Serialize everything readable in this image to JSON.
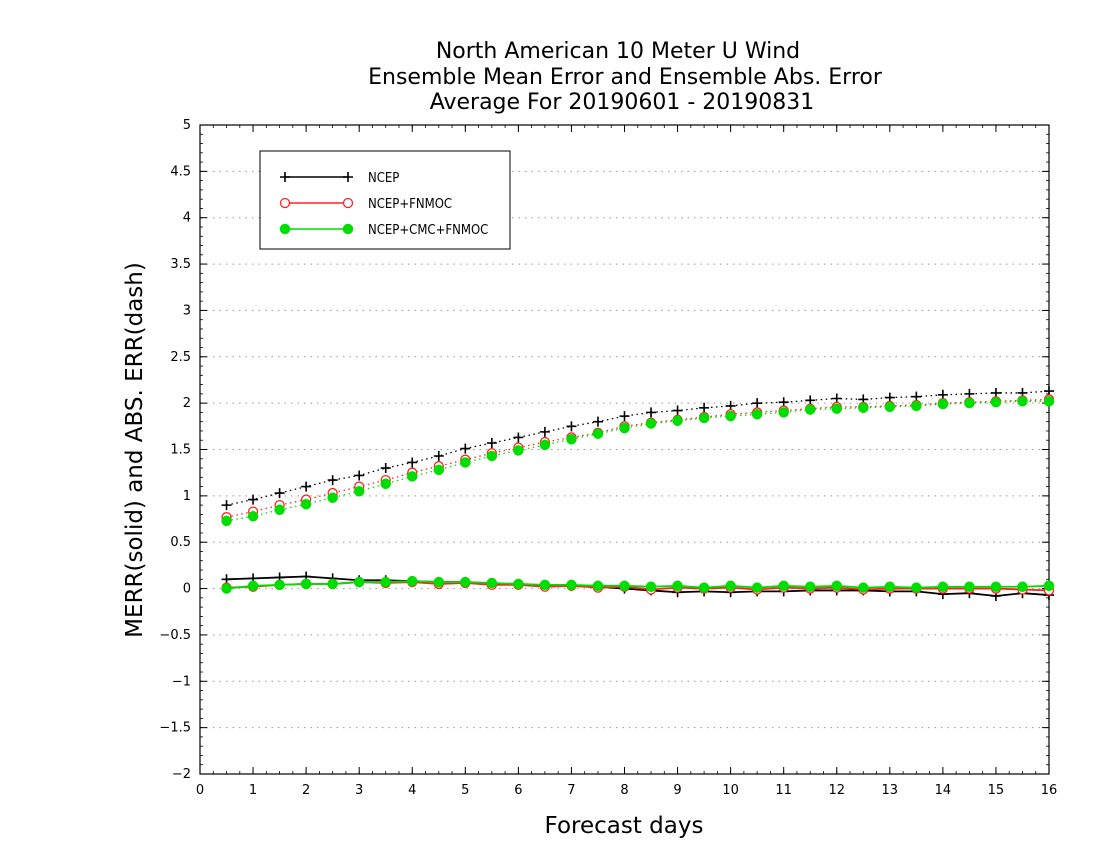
{
  "chart_data": {
    "type": "line",
    "title": [
      "North American 10 Meter U Wind",
      "Ensemble Mean Error and Ensemble Abs. Error",
      "Average For 20190601 - 20190831"
    ],
    "xlabel": "Forecast days",
    "ylabel": "MERR(solid) and ABS. ERR(dash)",
    "xlim": [
      0,
      16
    ],
    "ylim": [
      -2,
      5
    ],
    "x_ticks": [
      "0",
      "1",
      "2",
      "3",
      "4",
      "5",
      "6",
      "7",
      "8",
      "9",
      "10",
      "11",
      "12",
      "13",
      "14",
      "15",
      "16"
    ],
    "y_ticks": [
      "−2",
      "−1.5",
      "−1",
      "−0.5",
      "0",
      "0.5",
      "1",
      "1.5",
      "2",
      "2.5",
      "3",
      "3.5",
      "4",
      "4.5",
      "5"
    ],
    "grid": "horizontal-dotted",
    "legend_position": "top-left",
    "x": [
      0.5,
      1,
      1.5,
      2,
      2.5,
      3,
      3.5,
      4,
      4.5,
      5,
      5.5,
      6,
      6.5,
      7,
      7.5,
      8,
      8.5,
      9,
      9.5,
      10,
      10.5,
      11,
      11.5,
      12,
      12.5,
      13,
      13.5,
      14,
      14.5,
      15,
      15.5,
      16
    ],
    "series": [
      {
        "name": "NCEP",
        "color": "#000000",
        "marker": "plus",
        "merr": [
          0.1,
          0.11,
          0.12,
          0.13,
          0.11,
          0.09,
          0.09,
          0.08,
          0.07,
          0.07,
          0.05,
          0.05,
          0.03,
          0.03,
          0.02,
          0.0,
          -0.02,
          -0.04,
          -0.03,
          -0.04,
          -0.03,
          -0.03,
          -0.02,
          -0.02,
          -0.02,
          -0.03,
          -0.03,
          -0.06,
          -0.05,
          -0.08,
          -0.05,
          -0.07
        ],
        "abserr": [
          0.9,
          0.96,
          1.03,
          1.1,
          1.17,
          1.22,
          1.3,
          1.36,
          1.43,
          1.51,
          1.57,
          1.63,
          1.69,
          1.75,
          1.8,
          1.86,
          1.9,
          1.92,
          1.95,
          1.97,
          2.0,
          2.01,
          2.03,
          2.05,
          2.04,
          2.06,
          2.07,
          2.09,
          2.1,
          2.11,
          2.11,
          2.13
        ]
      },
      {
        "name": "NCEP+FNMOC",
        "color": "#ff2222",
        "marker": "open-circle",
        "merr": [
          0.01,
          0.02,
          0.04,
          0.05,
          0.05,
          0.07,
          0.06,
          0.07,
          0.05,
          0.06,
          0.04,
          0.04,
          0.02,
          0.03,
          0.01,
          0.02,
          -0.01,
          0.01,
          0.0,
          0.01,
          -0.01,
          0.01,
          0.0,
          0.01,
          -0.01,
          0.0,
          0.0,
          0.0,
          0.0,
          0.0,
          -0.01,
          -0.02
        ],
        "abserr": [
          0.77,
          0.83,
          0.9,
          0.96,
          1.03,
          1.1,
          1.17,
          1.25,
          1.32,
          1.39,
          1.46,
          1.52,
          1.58,
          1.63,
          1.68,
          1.75,
          1.79,
          1.82,
          1.85,
          1.88,
          1.9,
          1.92,
          1.94,
          1.96,
          1.96,
          1.97,
          1.98,
          2.0,
          2.01,
          2.02,
          2.03,
          2.04
        ]
      },
      {
        "name": "NCEP+CMC+FNMOC",
        "color": "#00dd00",
        "marker": "filled-circle",
        "merr": [
          0.0,
          0.03,
          0.04,
          0.05,
          0.05,
          0.07,
          0.07,
          0.08,
          0.07,
          0.07,
          0.06,
          0.05,
          0.04,
          0.04,
          0.03,
          0.03,
          0.02,
          0.03,
          0.01,
          0.03,
          0.01,
          0.03,
          0.02,
          0.03,
          0.01,
          0.02,
          0.01,
          0.02,
          0.02,
          0.02,
          0.02,
          0.03
        ],
        "abserr": [
          0.73,
          0.78,
          0.85,
          0.91,
          0.98,
          1.05,
          1.13,
          1.21,
          1.28,
          1.36,
          1.43,
          1.49,
          1.55,
          1.61,
          1.67,
          1.73,
          1.78,
          1.81,
          1.84,
          1.86,
          1.88,
          1.9,
          1.93,
          1.94,
          1.95,
          1.96,
          1.97,
          1.99,
          2.0,
          2.01,
          2.02,
          2.02
        ]
      }
    ]
  }
}
